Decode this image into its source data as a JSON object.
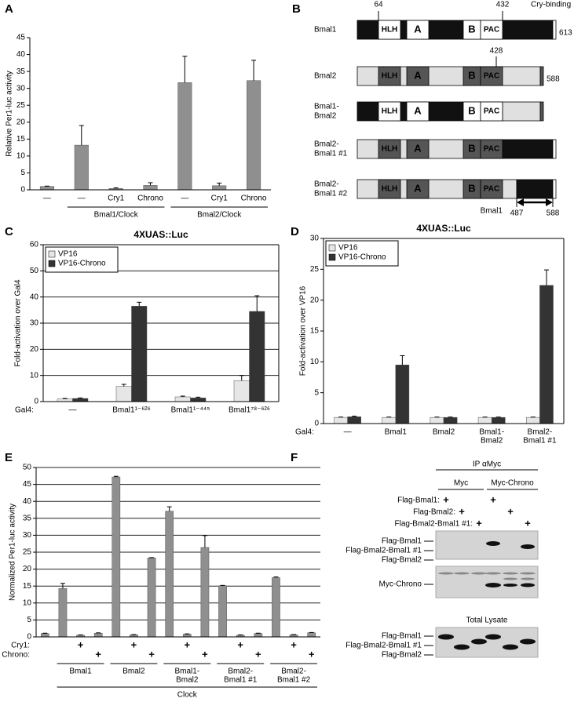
{
  "panel_labels": [
    "A",
    "B",
    "C",
    "D",
    "E",
    "F"
  ],
  "chart_data": [
    {
      "type": "bar",
      "y_label": "Relative Per1-luc activity",
      "categories": [
        "—",
        "—",
        "Cry1",
        "Chrono",
        "—",
        "Cry1",
        "Chrono"
      ],
      "values": [
        1.0,
        13.2,
        0.4,
        1.3,
        31.7,
        1.2,
        32.3
      ],
      "errors": [
        0.1,
        5.8,
        0.2,
        0.8,
        7.8,
        0.8,
        6.0
      ],
      "color": "#8f8f8f",
      "ylim": [
        0,
        45
      ],
      "yticks": [
        0,
        5,
        10,
        15,
        20,
        25,
        30,
        35,
        40,
        45
      ],
      "grid": false,
      "groups": [
        "Bmal1/Clock",
        "Bmal2/Clock"
      ]
    },
    {
      "type": "bar",
      "title": "4XUAS::Luc",
      "y_label": "Fold-activation over Gal4",
      "row_label": "Gal4:",
      "categories": [
        "—",
        "Bmal1¹⁻⁶²⁶",
        "Bmal1¹⁻⁴⁴⁵",
        "Bmal1⁷⁸⁻⁶²⁶"
      ],
      "series": [
        {
          "name": "VP16",
          "color": "#e6e6e6",
          "values": [
            1.0,
            5.8,
            1.8,
            8.0
          ],
          "errors": [
            0.2,
            0.8,
            0.3,
            2.0
          ]
        },
        {
          "name": "VP16-Chrono",
          "color": "#333333",
          "values": [
            1.2,
            36.5,
            1.4,
            34.5
          ],
          "errors": [
            0.2,
            1.5,
            0.3,
            6.0
          ]
        }
      ],
      "ylim": [
        0,
        60
      ],
      "yticks": [
        0,
        10,
        20,
        30,
        40,
        50,
        60
      ],
      "grid": true,
      "legend": "upper left"
    },
    {
      "type": "bar",
      "title": "4XUAS::Luc",
      "y_label": "Fold-activation over VP16",
      "row_label": "Gal4:",
      "categories": [
        "—",
        "Bmal1",
        "Bmal2",
        [
          "Bmal1-",
          "Bmal2"
        ],
        [
          "Bmal2-",
          "Bmal1 #1"
        ]
      ],
      "series": [
        {
          "name": "VP16",
          "color": "#e6e6e6",
          "values": [
            1.0,
            1.0,
            1.0,
            1.0,
            1.0
          ],
          "errors": [
            0.05,
            0.05,
            0.05,
            0.05,
            0.05
          ]
        },
        {
          "name": "VP16-Chrono",
          "color": "#333333",
          "values": [
            1.1,
            9.5,
            1.0,
            1.0,
            22.4
          ],
          "errors": [
            0.1,
            1.5,
            0.05,
            0.05,
            2.5
          ]
        }
      ],
      "ylim": [
        0,
        30
      ],
      "yticks": [
        0,
        5,
        10,
        15,
        20,
        25,
        30
      ],
      "grid": false,
      "legend": "upper left"
    },
    {
      "type": "bar",
      "y_label": "Normalized Per1-luc activity",
      "categories": [
        null,
        null,
        null,
        null,
        null,
        null,
        null,
        null,
        null,
        null,
        null,
        null,
        null,
        null,
        null,
        null
      ],
      "values": [
        1.0,
        14.3,
        0.5,
        1.1,
        47.2,
        0.6,
        23.3,
        37.1,
        0.8,
        26.4,
        15.1,
        0.5,
        1.0,
        17.5,
        0.6,
        1.2
      ],
      "errors": [
        0.1,
        1.5,
        0.1,
        0.1,
        0.2,
        0.1,
        0.1,
        1.3,
        0.1,
        3.5,
        0.1,
        0.1,
        0.1,
        0.2,
        0.1,
        0.1
      ],
      "color": "#8f8f8f",
      "ylim": [
        0,
        50
      ],
      "yticks": [
        0,
        5,
        10,
        15,
        20,
        25,
        30,
        35,
        40,
        45,
        50
      ],
      "grid": true,
      "factors": [
        {
          "name": "Cry1:",
          "signs": [
            null,
            null,
            "+",
            null,
            null,
            "+",
            null,
            null,
            "+",
            null,
            null,
            "+",
            null,
            null,
            "+",
            null
          ]
        },
        {
          "name": "Chrono:",
          "signs": [
            null,
            null,
            null,
            "+",
            null,
            null,
            "+",
            null,
            null,
            "+",
            null,
            null,
            "+",
            null,
            null,
            "+"
          ]
        }
      ],
      "groups": [
        [
          "Bmal1"
        ],
        [
          "Bmal2"
        ],
        [
          "Bmal1-",
          "Bmal2"
        ],
        [
          "Bmal2-",
          "Bmal1 #1"
        ],
        [
          "Bmal2-",
          "Bmal1 #2"
        ]
      ],
      "group_caption": "Clock"
    }
  ],
  "panel_b": {
    "constructs": [
      {
        "name": "Bmal1",
        "length": 613
      },
      {
        "name": "Bmal2",
        "length": 588
      },
      {
        "name": [
          "Bmal1-",
          "Bmal2"
        ]
      },
      {
        "name": [
          "Bmal2-",
          "Bmal1 #1"
        ]
      },
      {
        "name": [
          "Bmal2-",
          "Bmal1 #2"
        ]
      }
    ],
    "domains": [
      "HLH",
      "A",
      "B",
      "PAC"
    ],
    "bmal1_sites": [
      64,
      432
    ],
    "bmal2_site": 428,
    "region_label": "Cry-binding",
    "fragment": {
      "name": "Bmal1",
      "start": 487,
      "end": 588
    }
  },
  "panel_f": {
    "ip_label": "IP αMyc",
    "ip_groups": [
      "Myc",
      "Myc-Chrono"
    ],
    "rows": [
      {
        "label": "Flag-Bmal1:",
        "signs": [
          "+",
          null,
          null,
          "+",
          null,
          null
        ]
      },
      {
        "label": "Flag-Bmal2:",
        "signs": [
          null,
          "+",
          null,
          null,
          "+",
          null
        ]
      },
      {
        "label": "Flag-Bmal2-Bmal1 #1:",
        "signs": [
          null,
          null,
          "+",
          null,
          null,
          "+"
        ]
      }
    ],
    "blots": [
      {
        "labels": [
          "Flag-Bmal1",
          "Flag-Bmal2-Bmal1 #1",
          "Flag-Bmal2"
        ]
      },
      {
        "labels": [
          "Myc-Chrono"
        ]
      },
      {
        "title": "Total Lysate",
        "labels": [
          "Flag-Bmal1",
          "Flag-Bmal2-Bmal1 #1",
          "Flag-Bmal2"
        ]
      }
    ]
  }
}
